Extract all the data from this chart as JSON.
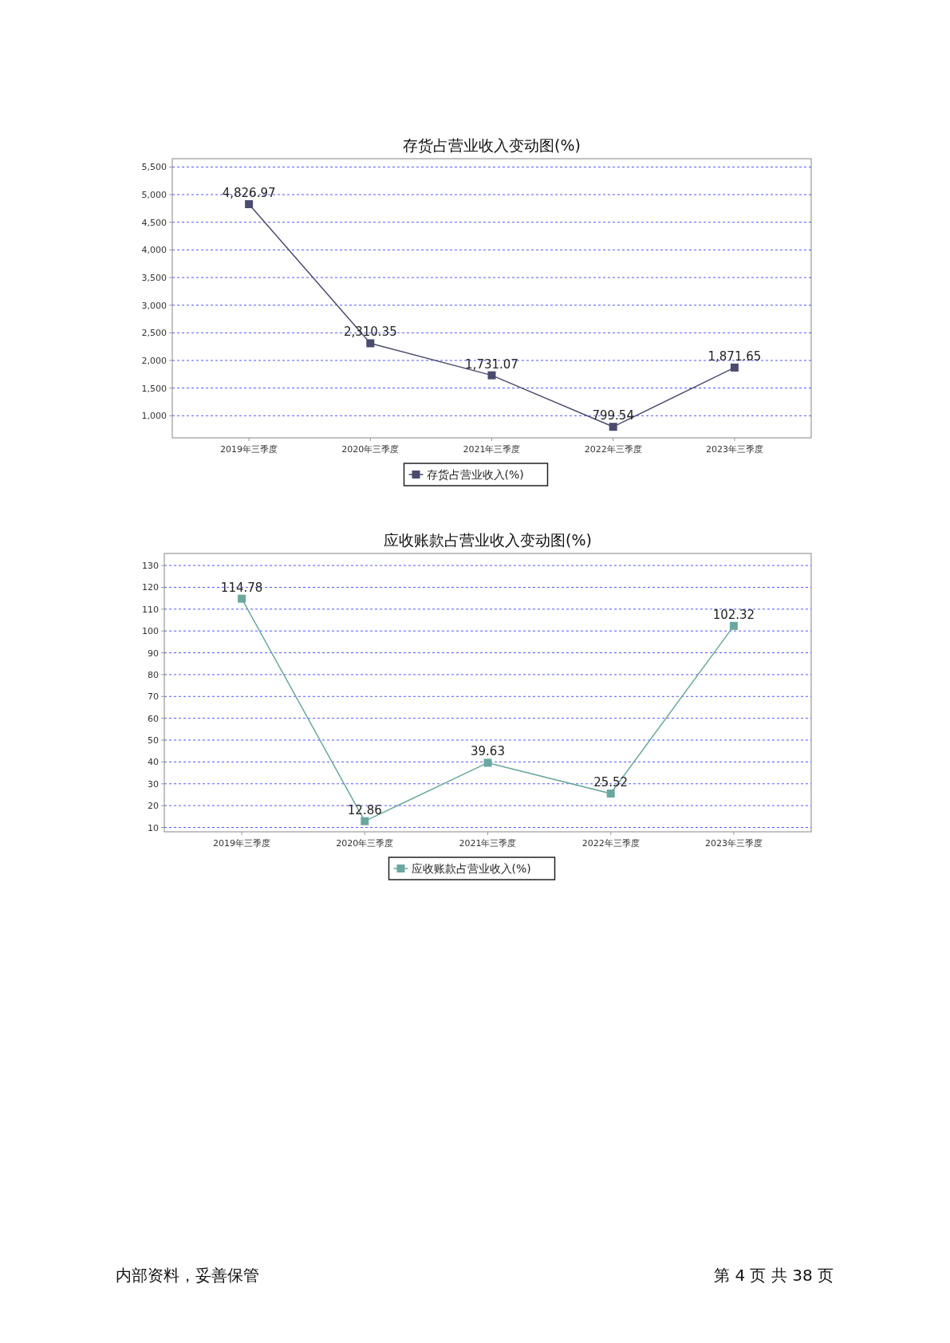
{
  "chart_data": [
    {
      "type": "line",
      "title": "存货占营业收入变动图(%)",
      "categories": [
        "2019年三季度",
        "2020年三季度",
        "2021年三季度",
        "2022年三季度",
        "2023年三季度"
      ],
      "series": [
        {
          "name": "存货占营业收入(%)",
          "color": "#4b4b70",
          "values": [
            4826.97,
            2310.35,
            1731.07,
            799.54,
            1871.65
          ],
          "value_labels": [
            "4,826.97",
            "2,310.35",
            "1,731.07",
            "799.54",
            "1,871.65"
          ]
        }
      ],
      "ylim": [
        600,
        5650
      ],
      "yticks": [
        {
          "value": 1000,
          "label": "1,000"
        },
        {
          "value": 1500,
          "label": "1,500"
        },
        {
          "value": 2000,
          "label": "2,000"
        },
        {
          "value": 2500,
          "label": "2,500"
        },
        {
          "value": 3000,
          "label": "3,000"
        },
        {
          "value": 3500,
          "label": "3,500"
        },
        {
          "value": 4000,
          "label": "4,000"
        },
        {
          "value": 4500,
          "label": "4,500"
        },
        {
          "value": 5000,
          "label": "5,000"
        },
        {
          "value": 5500,
          "label": "5,500"
        }
      ],
      "grid": "y",
      "legend": "bottom",
      "marker": "square",
      "line_style": "solid"
    },
    {
      "type": "line",
      "title": "应收账款占营业收入变动图(%)",
      "categories": [
        "2019年三季度",
        "2020年三季度",
        "2021年三季度",
        "2022年三季度",
        "2023年三季度"
      ],
      "series": [
        {
          "name": "应收账款占营业收入(%)",
          "color": "#6aa89f",
          "values": [
            114.78,
            12.86,
            39.63,
            25.52,
            102.32
          ],
          "value_labels": [
            "114.78",
            "12.86",
            "39.63",
            "25.52",
            "102.32"
          ]
        }
      ],
      "ylim": [
        8,
        135.5
      ],
      "yticks": [
        10,
        20,
        30,
        40,
        50,
        60,
        70,
        80,
        90,
        100,
        110,
        120,
        130
      ],
      "grid": "y",
      "legend": "bottom",
      "marker": "square",
      "line_style": "solid",
      "annotations": [
        "内部资料，妥善保管",
        "第 4 页   共 38 页"
      ]
    }
  ]
}
